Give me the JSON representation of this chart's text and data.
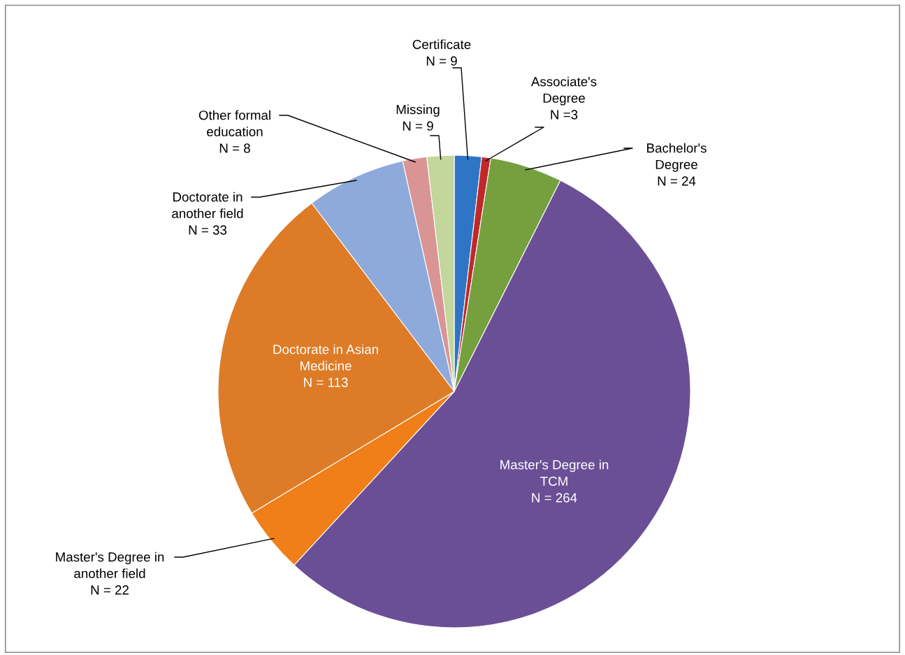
{
  "chart_data": {
    "type": "pie",
    "categories": [
      "Certificate",
      "Associate's\nDegree",
      "Bachelor's\nDegree",
      "Master's Degree in\nTCM",
      "Master's Degree in\nanother field",
      "Doctorate in Asian\nMedicine",
      "Doctorate in\nanother field",
      "Other formal\neducation",
      "Missing"
    ],
    "values": [
      9,
      3,
      24,
      264,
      22,
      113,
      33,
      8,
      9
    ],
    "value_labels": [
      "N = 9",
      "N =3",
      "N = 24",
      "N = 264",
      "N = 22",
      "N = 113",
      "N = 33",
      "N = 8",
      "N = 9"
    ],
    "colors": [
      "#2e75c6",
      "#c0282a",
      "#76a03e",
      "#6b4f96",
      "#f07f19",
      "#de7b26",
      "#8eaadb",
      "#d99594",
      "#c3d69b"
    ]
  }
}
